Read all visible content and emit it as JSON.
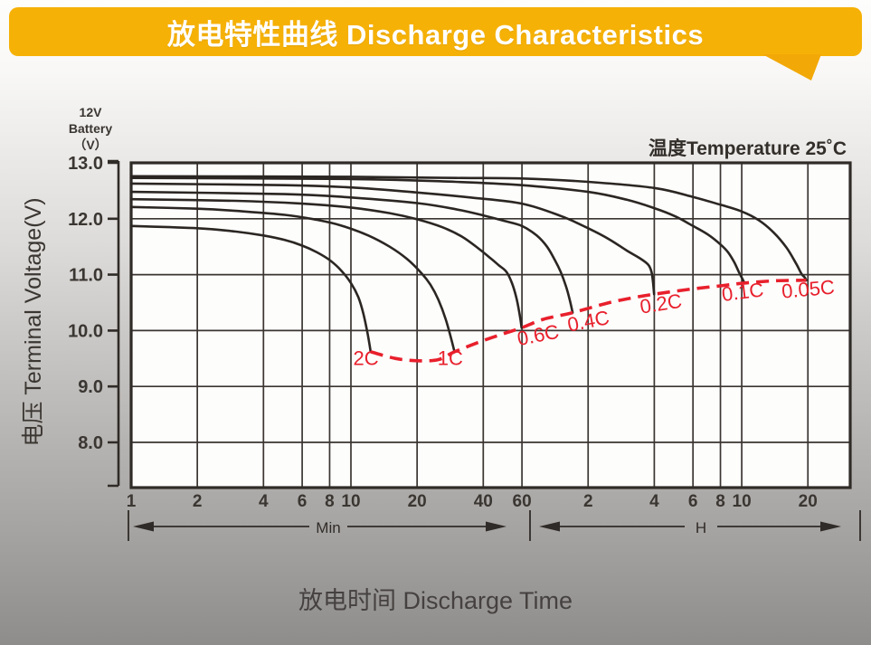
{
  "banner": {
    "title": "放电特性曲线 Discharge Characteristics",
    "bg_color": "#f6b106",
    "text_color": "#ffffff"
  },
  "y_axis": {
    "unit_lines": [
      "12V",
      "Battery",
      "（V）"
    ],
    "title": "电压 Terminal Voltage(V)"
  },
  "x_axis": {
    "title": "放电时间 Discharge Time",
    "min_section_label": "Min",
    "h_section_label": "H"
  },
  "annotation": "温度Temperature 25˚C",
  "chart_data": {
    "type": "line",
    "title": "放电特性曲线 Discharge Characteristics",
    "xlabel": "放电时间 Discharge Time",
    "ylabel": "电压 Terminal Voltage(V)",
    "annotation": "温度Temperature 25˚C",
    "x_scale": "log",
    "x_unit": "minutes",
    "xlim_minutes": [
      1,
      1869
    ],
    "ylim": [
      7.2,
      13.0
    ],
    "grid": true,
    "colors": {
      "curve": "#2b2622",
      "grid": "#3a3531",
      "frame": "#2f2b27",
      "cutoff": "#e8202c",
      "tick_text": "#3a3632",
      "annotation_text": "#322e2a",
      "plot_bg": "#fdfdfc"
    },
    "y_ticks": [
      {
        "label": "13.0",
        "v": 13.0
      },
      {
        "label": "12.0",
        "v": 12.0
      },
      {
        "label": "11.0",
        "v": 11.0
      },
      {
        "label": "10.0",
        "v": 10.0
      },
      {
        "label": "9.0",
        "v": 9.0
      },
      {
        "label": "8.0",
        "v": 8.0
      }
    ],
    "x_ticks_min": [
      {
        "label": "1",
        "t": 1
      },
      {
        "label": "2",
        "t": 2
      },
      {
        "label": "4",
        "t": 4
      },
      {
        "label": "6",
        "t": 6
      },
      {
        "label": "8",
        "t": 8
      },
      {
        "label": "10",
        "t": 10
      },
      {
        "label": "20",
        "t": 20
      },
      {
        "label": "40",
        "t": 40
      },
      {
        "label": "60",
        "t": 60
      }
    ],
    "x_ticks_h": [
      {
        "label": "2",
        "t": 120
      },
      {
        "label": "4",
        "t": 240
      },
      {
        "label": "6",
        "t": 360
      },
      {
        "label": "8",
        "t": 480
      },
      {
        "label": "10",
        "t": 600
      },
      {
        "label": "20",
        "t": 1200
      }
    ],
    "series": [
      {
        "name": "2C",
        "label": {
          "text": "2C",
          "t": 11.7,
          "v": 9.38,
          "rot": 0
        },
        "points": [
          [
            1,
            11.87
          ],
          [
            2,
            11.83
          ],
          [
            3,
            11.77
          ],
          [
            4,
            11.7
          ],
          [
            5,
            11.62
          ],
          [
            6,
            11.52
          ],
          [
            7,
            11.4
          ],
          [
            8,
            11.26
          ],
          [
            9,
            11.08
          ],
          [
            10,
            10.85
          ],
          [
            10.8,
            10.6
          ],
          [
            11.4,
            10.3
          ],
          [
            11.9,
            9.95
          ],
          [
            12.3,
            9.62
          ]
        ]
      },
      {
        "name": "1C",
        "label": {
          "text": "1C",
          "t": 28.3,
          "v": 9.38,
          "rot": 0
        },
        "points": [
          [
            1,
            12.21
          ],
          [
            2,
            12.18
          ],
          [
            3,
            12.14
          ],
          [
            5,
            12.07
          ],
          [
            7,
            11.98
          ],
          [
            9,
            11.88
          ],
          [
            12,
            11.7
          ],
          [
            15,
            11.5
          ],
          [
            18,
            11.28
          ],
          [
            21,
            11.02
          ],
          [
            23,
            10.82
          ],
          [
            25,
            10.55
          ],
          [
            27,
            10.2
          ],
          [
            28.6,
            9.85
          ],
          [
            29.6,
            9.62
          ]
        ]
      },
      {
        "name": "0.6C",
        "label": {
          "text": "0.6C",
          "t": 72,
          "v": 9.8,
          "rot": -11
        },
        "points": [
          [
            1,
            12.35
          ],
          [
            3,
            12.32
          ],
          [
            6,
            12.27
          ],
          [
            10,
            12.2
          ],
          [
            15,
            12.1
          ],
          [
            20,
            11.99
          ],
          [
            26,
            11.85
          ],
          [
            32,
            11.68
          ],
          [
            38,
            11.47
          ],
          [
            43,
            11.3
          ],
          [
            47,
            11.17
          ],
          [
            51,
            11.05
          ],
          [
            54,
            10.85
          ],
          [
            56.5,
            10.6
          ],
          [
            58.5,
            10.3
          ],
          [
            59.8,
            10.05
          ]
        ]
      },
      {
        "name": "0.4C",
        "label": {
          "text": "0.4C",
          "t": 122,
          "v": 10.05,
          "rot": -11
        },
        "points": [
          [
            1,
            12.48
          ],
          [
            5,
            12.44
          ],
          [
            10,
            12.38
          ],
          [
            20,
            12.28
          ],
          [
            30,
            12.17
          ],
          [
            40,
            12.06
          ],
          [
            50,
            11.96
          ],
          [
            60,
            11.87
          ],
          [
            70,
            11.7
          ],
          [
            78,
            11.5
          ],
          [
            85,
            11.25
          ],
          [
            90,
            11.05
          ],
          [
            95,
            10.8
          ],
          [
            99,
            10.55
          ],
          [
            102,
            10.32
          ]
        ]
      },
      {
        "name": "0.2C",
        "label": {
          "text": "0.2C",
          "t": 260,
          "v": 10.36,
          "rot": -9
        },
        "points": [
          [
            1,
            12.63
          ],
          [
            5,
            12.6
          ],
          [
            10,
            12.56
          ],
          [
            20,
            12.47
          ],
          [
            35,
            12.38
          ],
          [
            60,
            12.27
          ],
          [
            90,
            12.05
          ],
          [
            120,
            11.83
          ],
          [
            150,
            11.63
          ],
          [
            180,
            11.43
          ],
          [
            205,
            11.3
          ],
          [
            225,
            11.18
          ],
          [
            233,
            11.05
          ],
          [
            237,
            10.85
          ],
          [
            239.5,
            10.65
          ]
        ]
      },
      {
        "name": "0.1C",
        "label": {
          "text": "0.1C",
          "t": 611,
          "v": 10.57,
          "rot": -7
        },
        "points": [
          [
            1,
            12.73
          ],
          [
            10,
            12.71
          ],
          [
            30,
            12.66
          ],
          [
            60,
            12.6
          ],
          [
            120,
            12.48
          ],
          [
            180,
            12.34
          ],
          [
            240,
            12.19
          ],
          [
            300,
            12.04
          ],
          [
            360,
            11.87
          ],
          [
            420,
            11.72
          ],
          [
            480,
            11.54
          ],
          [
            520,
            11.4
          ],
          [
            555,
            11.22
          ],
          [
            585,
            11.03
          ],
          [
            605,
            10.92
          ],
          [
            618,
            10.85
          ]
        ]
      },
      {
        "name": "0.05C",
        "label": {
          "text": "0.05C",
          "t": 1210,
          "v": 10.62,
          "rot": -5
        },
        "points": [
          [
            1,
            12.76
          ],
          [
            10,
            12.75
          ],
          [
            30,
            12.73
          ],
          [
            60,
            12.72
          ],
          [
            120,
            12.66
          ],
          [
            240,
            12.55
          ],
          [
            360,
            12.39
          ],
          [
            480,
            12.25
          ],
          [
            600,
            12.13
          ],
          [
            720,
            11.97
          ],
          [
            840,
            11.75
          ],
          [
            960,
            11.48
          ],
          [
            1060,
            11.2
          ],
          [
            1120,
            11.02
          ],
          [
            1160,
            10.95
          ],
          [
            1180,
            10.9
          ]
        ]
      }
    ],
    "cutoff_curve": {
      "name": "discharge-cutoff-line",
      "style": "dashed",
      "points": [
        [
          12.3,
          9.62
        ],
        [
          16,
          9.5
        ],
        [
          20,
          9.46
        ],
        [
          25,
          9.48
        ],
        [
          29.6,
          9.62
        ],
        [
          40,
          9.82
        ],
        [
          50,
          9.95
        ],
        [
          59.8,
          10.05
        ],
        [
          75,
          10.2
        ],
        [
          102,
          10.32
        ],
        [
          150,
          10.5
        ],
        [
          200,
          10.6
        ],
        [
          239.5,
          10.65
        ],
        [
          350,
          10.74
        ],
        [
          480,
          10.8
        ],
        [
          618,
          10.85
        ],
        [
          850,
          10.89
        ],
        [
          1180,
          10.9
        ]
      ]
    }
  }
}
